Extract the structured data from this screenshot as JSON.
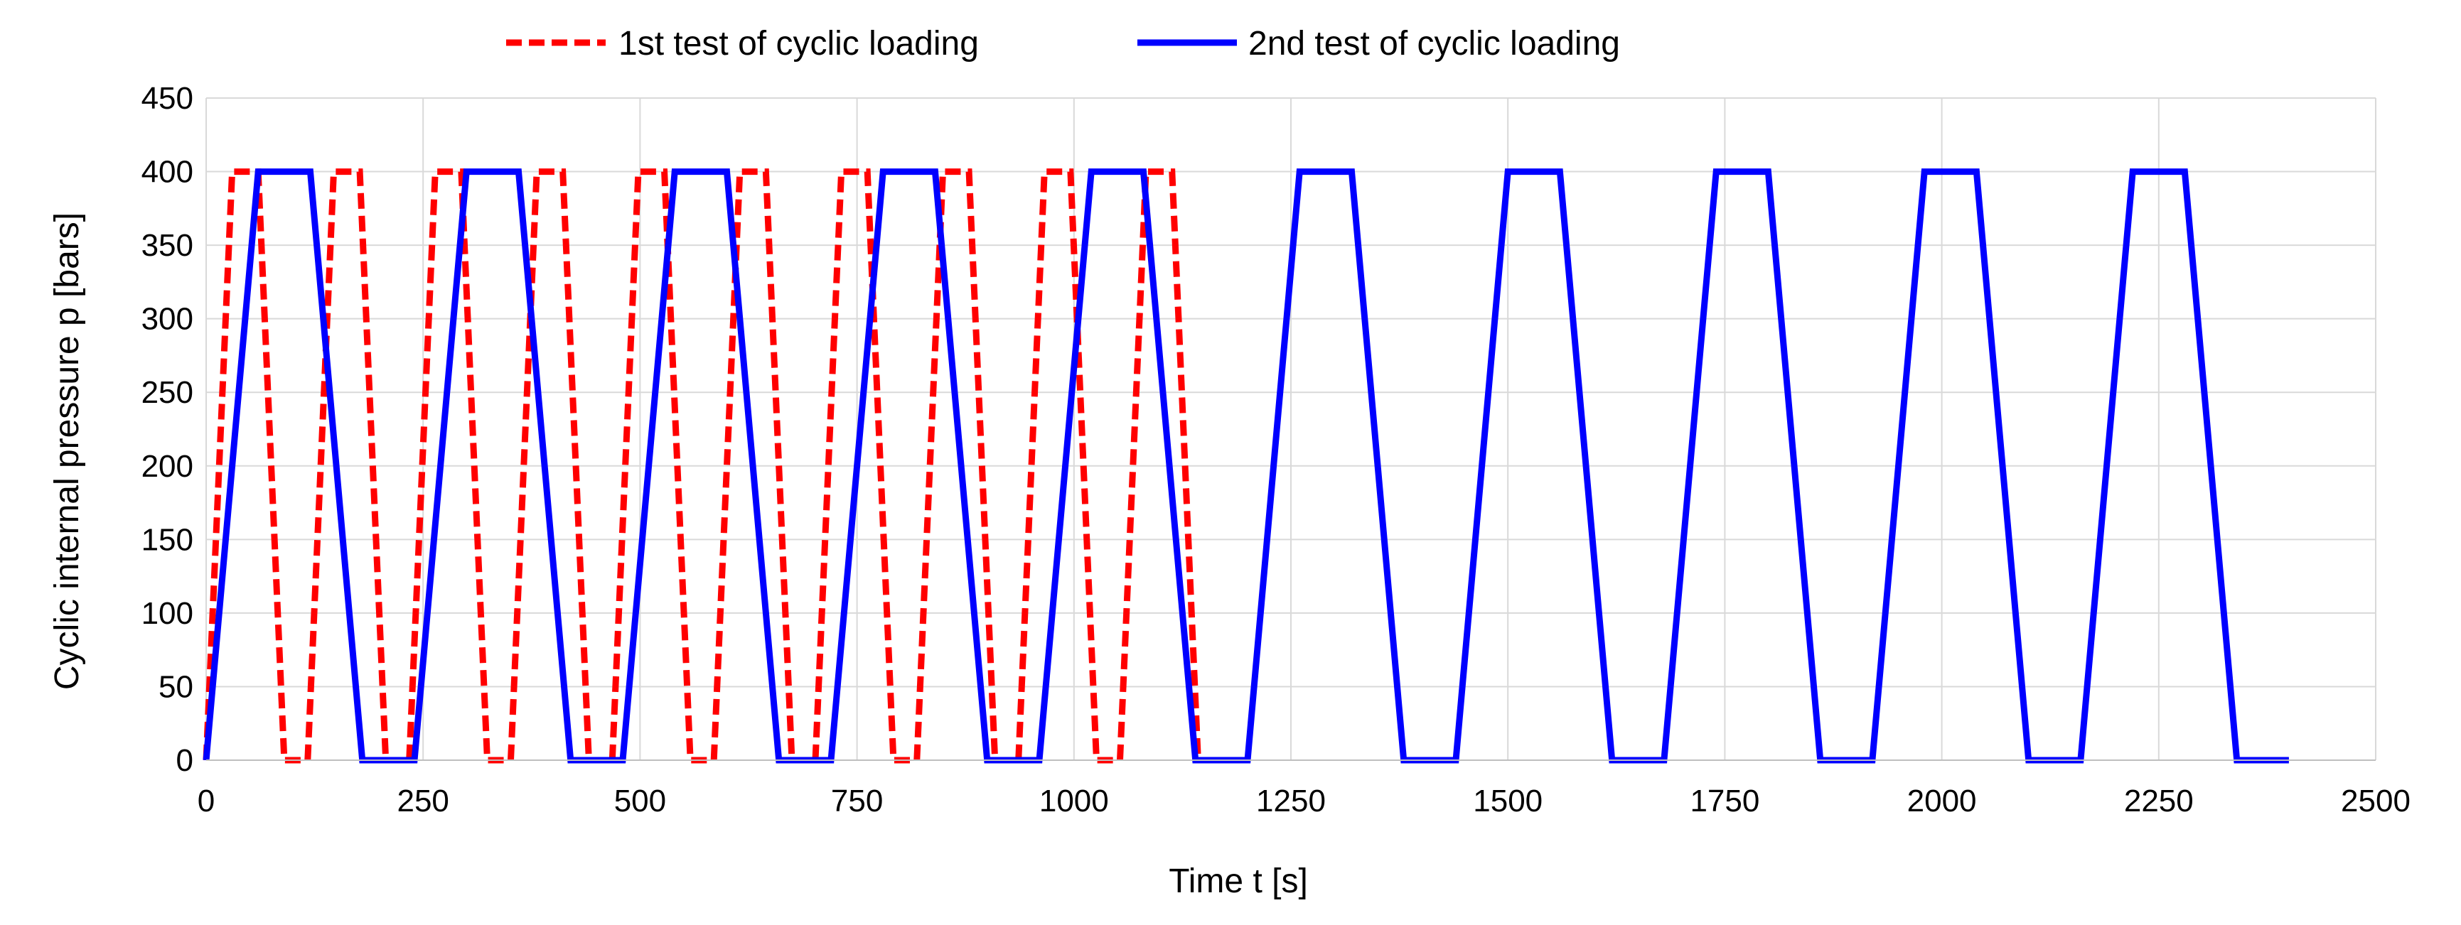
{
  "chart_data": {
    "type": "line",
    "title": "",
    "xlabel": "Time t [s]",
    "ylabel": "Cyclic internal pressure p [bars]",
    "xlim": [
      0,
      2500
    ],
    "ylim": [
      0,
      450
    ],
    "xticks": [
      0,
      250,
      500,
      750,
      1000,
      1250,
      1500,
      1750,
      2000,
      2250,
      2500
    ],
    "yticks": [
      0,
      50,
      100,
      150,
      200,
      250,
      300,
      350,
      400,
      450
    ],
    "grid": true,
    "legend_position": "top-center",
    "series": [
      {
        "name": "1st test of cyclic loading",
        "color": "#ff0000",
        "style": "dashed",
        "cycles": 10,
        "cycle_period_s": 117,
        "ramp_s": 30,
        "hold_peak_s": 30,
        "hold_zero_s": 27,
        "peak": 400,
        "x": [
          0,
          30,
          60,
          90,
          117,
          147,
          177,
          207,
          234,
          264,
          294,
          324,
          351,
          381,
          411,
          441,
          468,
          498,
          528,
          558,
          585,
          615,
          645,
          675,
          702,
          732,
          762,
          792,
          819,
          849,
          879,
          909,
          936,
          966,
          996,
          1026,
          1053,
          1083,
          1113,
          1143,
          1170
        ],
        "y": [
          0,
          400,
          400,
          0,
          0,
          400,
          400,
          0,
          0,
          400,
          400,
          0,
          0,
          400,
          400,
          0,
          0,
          400,
          400,
          0,
          0,
          400,
          400,
          0,
          0,
          400,
          400,
          0,
          0,
          400,
          400,
          0,
          0,
          400,
          400,
          0,
          0,
          400,
          400,
          0,
          0
        ]
      },
      {
        "name": "2nd test of cyclic loading",
        "color": "#0000ff",
        "style": "solid",
        "cycles": 10,
        "cycle_period_s": 240,
        "ramp_s": 60,
        "hold_peak_s": 60,
        "hold_zero_s": 60,
        "peak": 400,
        "x": [
          0,
          60,
          120,
          180,
          240,
          300,
          360,
          420,
          480,
          540,
          600,
          660,
          720,
          780,
          840,
          900,
          960,
          1020,
          1080,
          1140,
          1200,
          1260,
          1320,
          1380,
          1440,
          1500,
          1560,
          1620,
          1680,
          1740,
          1800,
          1860,
          1920,
          1980,
          2040,
          2100,
          2160,
          2220,
          2280,
          2340,
          2400
        ],
        "y": [
          0,
          400,
          400,
          0,
          0,
          400,
          400,
          0,
          0,
          400,
          400,
          0,
          0,
          400,
          400,
          0,
          0,
          400,
          400,
          0,
          0,
          400,
          400,
          0,
          0,
          400,
          400,
          0,
          0,
          400,
          400,
          0,
          0,
          400,
          400,
          0,
          0,
          400,
          400,
          0,
          0
        ]
      }
    ]
  }
}
